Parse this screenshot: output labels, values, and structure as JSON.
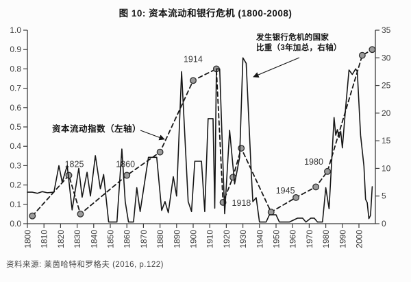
{
  "title": "图 10: 资本流动和银行危机 (1800-2008)",
  "source": "资料来源: 莱茵哈特和罗格夫 (2016, p.122)",
  "annotations": {
    "left_series_label": "资本流动指数（左轴）",
    "right_series_label_line1": "发生银行危机的国家",
    "right_series_label_line2": "比重（3年加总，右轴）"
  },
  "colors": {
    "line": "#161616",
    "marker_fill": "#9b9b9b",
    "marker_stroke": "#2e2e2e",
    "axis": "#3a3a3a",
    "tick_text": "#3d3d3d",
    "background": "#fcfcfc"
  },
  "chart_data": {
    "type": "line",
    "title": "图 10: 资本流动和银行危机 (1800-2008)",
    "x_axis": {
      "range": [
        1800,
        2008
      ],
      "ticks": [
        1800,
        1810,
        1820,
        1830,
        1840,
        1850,
        1860,
        1870,
        1880,
        1890,
        1900,
        1910,
        1920,
        1930,
        1940,
        1950,
        1960,
        1970,
        1980,
        1990,
        2000
      ],
      "tick_rotation": -90
    },
    "left_axis": {
      "range": [
        0,
        1
      ],
      "tick_labels": [
        "0.0",
        "0.1",
        "0.2",
        "0.3",
        "0.4",
        "0.5",
        "0.6",
        "0.7",
        "0.8",
        "0.9",
        "1.0"
      ]
    },
    "right_axis": {
      "range": [
        0,
        35
      ],
      "tick_labels": [
        "0",
        "5",
        "10",
        "15",
        "20",
        "25",
        "30",
        "35"
      ]
    },
    "grid": false,
    "series": [
      {
        "name": "资本流动指数（左轴）",
        "axis": "left",
        "style": "dashed",
        "marker": "circle",
        "x": [
          1803,
          1825,
          1832,
          1860,
          1880,
          1900,
          1914,
          1918,
          1924,
          1929,
          1947,
          1962,
          1974,
          1981,
          2002,
          2008
        ],
        "y": [
          0.04,
          0.25,
          0.05,
          0.25,
          0.37,
          0.74,
          0.8,
          0.11,
          0.24,
          0.39,
          0.06,
          0.135,
          0.19,
          0.27,
          0.87,
          0.9
        ],
        "point_labels": [
          {
            "text": "1825",
            "year": 1825,
            "dx": 8,
            "dy": -12,
            "anchor": "middle"
          },
          {
            "text": "1860",
            "year": 1860,
            "dx": -2,
            "dy": -12,
            "anchor": "middle"
          },
          {
            "text": "1914",
            "year": 1914,
            "dx": -34,
            "dy": -10,
            "anchor": "middle"
          },
          {
            "text": "1918",
            "year": 1918,
            "dx": 13,
            "dy": 5,
            "anchor": "start"
          },
          {
            "text": "1945",
            "year": 1947,
            "dx": 7,
            "dy": -27,
            "anchor": "start"
          },
          {
            "text": "1980",
            "year": 1981,
            "dx": -20,
            "dy": -10,
            "anchor": "middle"
          }
        ]
      },
      {
        "name": "发生银行危机的国家比重（3年加总，右轴）",
        "axis": "right",
        "style": "solid",
        "marker": "none",
        "x": [
          1800,
          1803,
          1806,
          1809,
          1812,
          1816,
          1819,
          1821,
          1824,
          1827,
          1831,
          1833,
          1836,
          1838,
          1841,
          1844,
          1846,
          1849,
          1854,
          1857,
          1859,
          1861,
          1864,
          1866,
          1868,
          1873,
          1878,
          1881,
          1883,
          1885,
          1888,
          1890,
          1893,
          1897,
          1899,
          1901,
          1905,
          1907,
          1909,
          1912,
          1913,
          1914,
          1916,
          1919,
          1922,
          1925,
          1928,
          1930,
          1932,
          1935,
          1936,
          1938,
          1940,
          1944,
          1946,
          1950,
          1952,
          1958,
          1963,
          1966,
          1968,
          1971,
          1973,
          1975,
          1978,
          1980,
          1982,
          1985,
          1986,
          1987,
          1988,
          1989,
          1990,
          1992,
          1994,
          1996,
          1998,
          1999,
          2001,
          2003,
          2004,
          2005,
          2006,
          2007,
          2008
        ],
        "y": [
          5.7,
          5.7,
          5.5,
          5.8,
          5.6,
          5.7,
          10.5,
          7.5,
          10.5,
          2.5,
          10,
          4.8,
          9.3,
          5,
          12.3,
          6.3,
          8.9,
          0.3,
          0.3,
          13.5,
          4,
          0.3,
          0.3,
          6.5,
          2.2,
          12,
          12,
          2.4,
          4,
          2,
          8.5,
          5,
          27.5,
          4,
          2.2,
          11.3,
          11.3,
          2.2,
          19,
          19,
          2.8,
          28,
          28,
          1.8,
          16.9,
          7.2,
          12,
          30,
          29,
          9.5,
          4,
          4.7,
          0.3,
          0.3,
          1.6,
          1.6,
          0.3,
          0.3,
          1,
          1,
          0.3,
          1,
          1,
          0.3,
          0.3,
          6.5,
          2.7,
          19.2,
          16,
          17,
          15.6,
          16.7,
          13.7,
          21,
          27.8,
          27,
          28,
          27.5,
          16,
          10.4,
          4.4,
          3.8,
          0.9,
          1.5,
          6.7
        ]
      }
    ]
  }
}
